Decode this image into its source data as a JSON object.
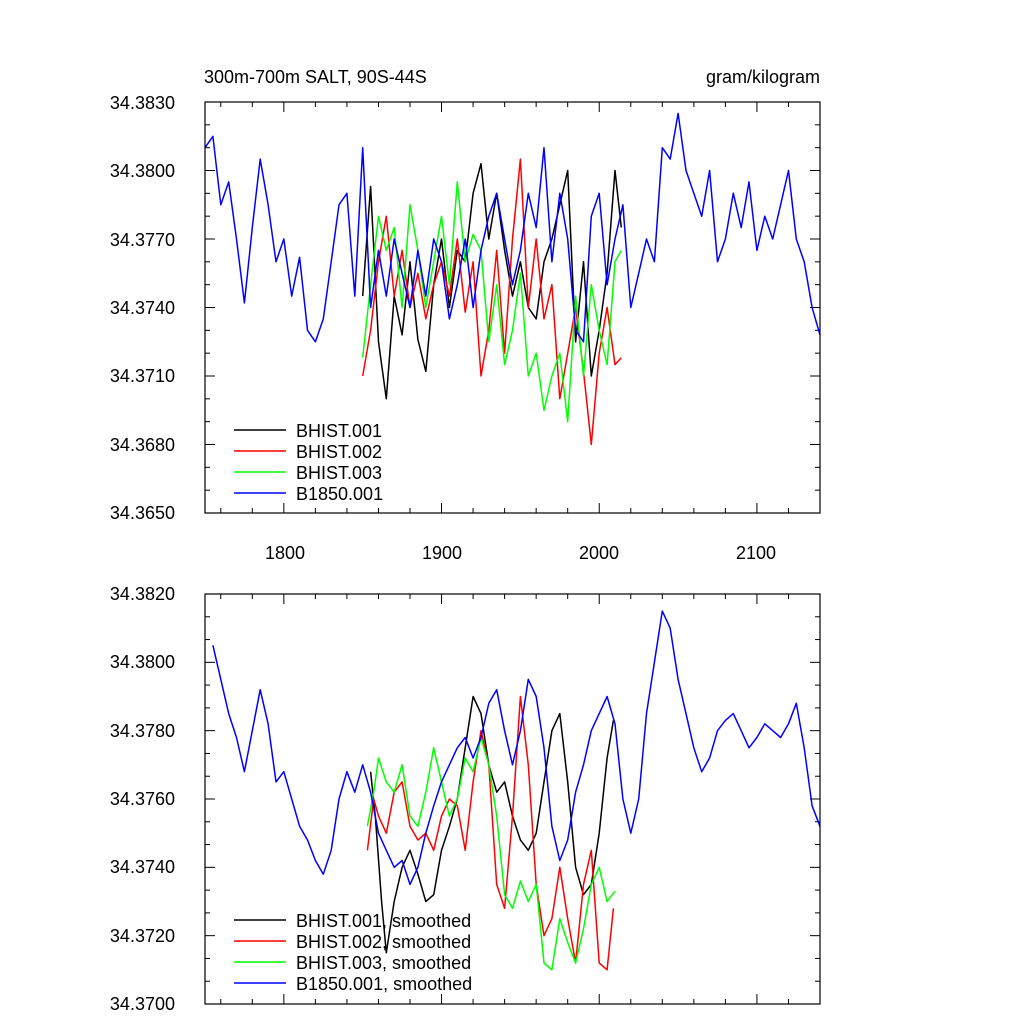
{
  "chart_data": [
    {
      "type": "line",
      "title_left": "300m-700m SALT, 90S-44S",
      "title_right": "gram/kilogram",
      "xlim": [
        1750,
        2140
      ],
      "ylim": [
        34.365,
        34.383
      ],
      "x_ticks": [
        1800,
        1900,
        2000,
        2100
      ],
      "x_tick_labels": [
        "1800",
        "1900",
        "2000",
        "2100"
      ],
      "y_ticks": [
        34.365,
        34.368,
        34.371,
        34.374,
        34.377,
        34.38,
        34.383
      ],
      "y_tick_labels": [
        "34.3650",
        "34.3680",
        "34.3710",
        "34.3740",
        "34.3770",
        "34.3800",
        "34.3830"
      ],
      "legend": {
        "placement": "bottom-left"
      },
      "series": [
        {
          "name": "BHIST.001",
          "color": "#000000",
          "x": [
            1850,
            1855,
            1860,
            1865,
            1870,
            1875,
            1880,
            1885,
            1890,
            1895,
            1900,
            1905,
            1910,
            1915,
            1920,
            1925,
            1930,
            1935,
            1940,
            1945,
            1950,
            1955,
            1960,
            1965,
            1970,
            1975,
            1980,
            1985,
            1990,
            1995,
            2000,
            2005,
            2010,
            2014
          ],
          "y": [
            34.3745,
            34.3793,
            34.3725,
            34.37,
            34.3745,
            34.3728,
            34.376,
            34.3726,
            34.3712,
            34.375,
            34.377,
            34.374,
            34.3765,
            34.376,
            34.379,
            34.3803,
            34.377,
            34.379,
            34.3765,
            34.3745,
            34.376,
            34.374,
            34.3735,
            34.376,
            34.377,
            34.3785,
            34.38,
            34.3725,
            34.376,
            34.371,
            34.373,
            34.3755,
            34.38,
            34.3775
          ]
        },
        {
          "name": "BHIST.002",
          "color": "#ff0000",
          "x": [
            1850,
            1855,
            1860,
            1865,
            1870,
            1875,
            1880,
            1885,
            1890,
            1895,
            1900,
            1905,
            1910,
            1915,
            1920,
            1925,
            1930,
            1935,
            1940,
            1945,
            1950,
            1955,
            1960,
            1965,
            1970,
            1975,
            1980,
            1985,
            1990,
            1995,
            2000,
            2005,
            2010,
            2014
          ],
          "y": [
            34.371,
            34.373,
            34.376,
            34.378,
            34.3745,
            34.3765,
            34.374,
            34.3755,
            34.3735,
            34.375,
            34.376,
            34.3745,
            34.377,
            34.3738,
            34.376,
            34.371,
            34.373,
            34.3765,
            34.372,
            34.377,
            34.3805,
            34.374,
            34.377,
            34.3735,
            34.375,
            34.37,
            34.372,
            34.374,
            34.3712,
            34.368,
            34.372,
            34.374,
            34.3715,
            34.3718
          ]
        },
        {
          "name": "BHIST.003",
          "color": "#00ff00",
          "x": [
            1850,
            1855,
            1860,
            1865,
            1870,
            1875,
            1880,
            1885,
            1890,
            1895,
            1900,
            1905,
            1910,
            1915,
            1920,
            1925,
            1930,
            1935,
            1940,
            1945,
            1950,
            1955,
            1960,
            1965,
            1970,
            1975,
            1980,
            1985,
            1990,
            1995,
            2000,
            2005,
            2010,
            2014
          ],
          "y": [
            34.3718,
            34.375,
            34.378,
            34.3765,
            34.3775,
            34.374,
            34.3785,
            34.3765,
            34.374,
            34.376,
            34.378,
            34.375,
            34.3795,
            34.376,
            34.3772,
            34.3765,
            34.3725,
            34.375,
            34.3715,
            34.373,
            34.3755,
            34.371,
            34.372,
            34.3695,
            34.371,
            34.372,
            34.369,
            34.3745,
            34.371,
            34.375,
            34.373,
            34.3715,
            34.376,
            34.3765
          ]
        },
        {
          "name": "B1850.001",
          "color": "#0000ff",
          "x": [
            1750,
            1755,
            1760,
            1765,
            1770,
            1775,
            1780,
            1785,
            1790,
            1795,
            1800,
            1805,
            1810,
            1815,
            1820,
            1825,
            1830,
            1835,
            1840,
            1845,
            1850,
            1855,
            1860,
            1865,
            1870,
            1875,
            1880,
            1885,
            1890,
            1895,
            1900,
            1905,
            1910,
            1915,
            1920,
            1925,
            1930,
            1935,
            1940,
            1945,
            1950,
            1955,
            1960,
            1965,
            1970,
            1975,
            1980,
            1985,
            1990,
            1995,
            2000,
            2005,
            2010,
            2015,
            2020,
            2025,
            2030,
            2035,
            2040,
            2045,
            2050,
            2055,
            2060,
            2065,
            2070,
            2075,
            2080,
            2085,
            2090,
            2095,
            2100,
            2105,
            2110,
            2115,
            2120,
            2125,
            2130,
            2135,
            2140
          ],
          "y": [
            34.381,
            34.3815,
            34.3785,
            34.3795,
            34.377,
            34.3742,
            34.3775,
            34.3805,
            34.3785,
            34.376,
            34.377,
            34.3745,
            34.3762,
            34.373,
            34.3725,
            34.3735,
            34.376,
            34.3785,
            34.379,
            34.3745,
            34.381,
            34.374,
            34.3765,
            34.3745,
            34.377,
            34.3755,
            34.374,
            34.3765,
            34.3745,
            34.377,
            34.376,
            34.3735,
            34.375,
            34.377,
            34.374,
            34.3765,
            34.378,
            34.379,
            34.377,
            34.375,
            34.3765,
            34.379,
            34.3775,
            34.381,
            34.376,
            34.379,
            34.377,
            34.373,
            34.3725,
            34.378,
            34.379,
            34.375,
            34.377,
            34.3785,
            34.374,
            34.3755,
            34.377,
            34.376,
            34.381,
            34.3805,
            34.3825,
            34.38,
            34.379,
            34.378,
            34.38,
            34.376,
            34.377,
            34.379,
            34.3775,
            34.3795,
            34.3765,
            34.378,
            34.377,
            34.3785,
            34.38,
            34.377,
            34.376,
            34.374,
            34.3728
          ]
        }
      ]
    },
    {
      "type": "line",
      "xlim": [
        1750,
        2140
      ],
      "ylim": [
        34.37,
        34.382
      ],
      "x_ticks": [
        1800,
        1900,
        2000,
        2100
      ],
      "y_ticks": [
        34.37,
        34.372,
        34.374,
        34.376,
        34.378,
        34.38,
        34.382
      ],
      "y_tick_labels": [
        "34.3700",
        "34.3720",
        "34.3740",
        "34.3760",
        "34.3780",
        "34.3800",
        "34.3820"
      ],
      "legend": {
        "placement": "bottom-left"
      },
      "series": [
        {
          "name": "BHIST.001, smoothed",
          "color": "#000000",
          "x": [
            1855,
            1858,
            1862,
            1865,
            1870,
            1875,
            1880,
            1885,
            1890,
            1895,
            1900,
            1905,
            1910,
            1915,
            1920,
            1925,
            1930,
            1935,
            1940,
            1945,
            1950,
            1955,
            1960,
            1965,
            1970,
            1975,
            1980,
            1985,
            1990,
            1995,
            2000,
            2005,
            2009
          ],
          "y": [
            34.3768,
            34.3755,
            34.373,
            34.3715,
            34.373,
            34.374,
            34.3745,
            34.3738,
            34.373,
            34.3732,
            34.3745,
            34.3752,
            34.376,
            34.3775,
            34.379,
            34.3785,
            34.377,
            34.3762,
            34.3765,
            34.3755,
            34.3748,
            34.3745,
            34.375,
            34.3765,
            34.378,
            34.3785,
            34.3765,
            34.374,
            34.3732,
            34.3735,
            34.375,
            34.3772,
            34.3783
          ]
        },
        {
          "name": "BHIST.002, smoothed",
          "color": "#ff0000",
          "x": [
            1853,
            1857,
            1860,
            1865,
            1870,
            1875,
            1880,
            1885,
            1890,
            1895,
            1900,
            1905,
            1910,
            1915,
            1920,
            1925,
            1930,
            1935,
            1940,
            1945,
            1950,
            1955,
            1960,
            1965,
            1970,
            1975,
            1980,
            1985,
            1990,
            1995,
            2000,
            2005,
            2009
          ],
          "y": [
            34.3745,
            34.376,
            34.3755,
            34.375,
            34.3762,
            34.3765,
            34.3752,
            34.3748,
            34.375,
            34.3745,
            34.3755,
            34.376,
            34.3758,
            34.3745,
            34.3765,
            34.378,
            34.377,
            34.3735,
            34.3728,
            34.3755,
            34.379,
            34.377,
            34.3735,
            34.372,
            34.3725,
            34.374,
            34.3725,
            34.3712,
            34.3735,
            34.3745,
            34.3712,
            34.371,
            34.3728
          ]
        },
        {
          "name": "BHIST.003, smoothed",
          "color": "#00ff00",
          "x": [
            1853,
            1857,
            1860,
            1865,
            1870,
            1875,
            1880,
            1885,
            1890,
            1895,
            1900,
            1905,
            1910,
            1915,
            1920,
            1925,
            1930,
            1935,
            1940,
            1945,
            1950,
            1955,
            1960,
            1965,
            1970,
            1975,
            1980,
            1985,
            1990,
            1995,
            2000,
            2005,
            2010
          ],
          "y": [
            34.3752,
            34.3762,
            34.3772,
            34.3765,
            34.3762,
            34.377,
            34.3755,
            34.3752,
            34.3762,
            34.3775,
            34.3765,
            34.3755,
            34.376,
            34.3772,
            34.3768,
            34.3778,
            34.377,
            34.3755,
            34.3732,
            34.3728,
            34.3736,
            34.373,
            34.3735,
            34.3712,
            34.371,
            34.3725,
            34.3718,
            34.3712,
            34.3722,
            34.3735,
            34.374,
            34.373,
            34.3733
          ]
        },
        {
          "name": "B1850.001, smoothed",
          "color": "#0000ff",
          "x": [
            1755,
            1760,
            1765,
            1770,
            1775,
            1780,
            1785,
            1790,
            1795,
            1800,
            1805,
            1810,
            1815,
            1820,
            1825,
            1830,
            1835,
            1840,
            1845,
            1850,
            1855,
            1860,
            1865,
            1870,
            1875,
            1880,
            1885,
            1890,
            1895,
            1900,
            1905,
            1910,
            1915,
            1920,
            1925,
            1930,
            1935,
            1940,
            1945,
            1950,
            1955,
            1960,
            1965,
            1970,
            1975,
            1980,
            1985,
            1990,
            1995,
            2000,
            2005,
            2010,
            2015,
            2020,
            2025,
            2030,
            2035,
            2040,
            2045,
            2050,
            2055,
            2060,
            2065,
            2070,
            2075,
            2080,
            2085,
            2090,
            2095,
            2100,
            2105,
            2110,
            2115,
            2120,
            2125,
            2130,
            2135,
            2140
          ],
          "y": [
            34.3805,
            34.3795,
            34.3785,
            34.3778,
            34.3768,
            34.378,
            34.3792,
            34.3782,
            34.3765,
            34.3768,
            34.376,
            34.3752,
            34.3748,
            34.3742,
            34.3738,
            34.3745,
            34.376,
            34.3768,
            34.3762,
            34.377,
            34.3762,
            34.375,
            34.3745,
            34.374,
            34.3742,
            34.3735,
            34.374,
            34.375,
            34.3758,
            34.3765,
            34.377,
            34.3775,
            34.3778,
            34.3772,
            34.3778,
            34.3788,
            34.3792,
            34.378,
            34.377,
            34.378,
            34.3795,
            34.379,
            34.3775,
            34.3752,
            34.3742,
            34.3748,
            34.3762,
            34.377,
            34.378,
            34.3785,
            34.379,
            34.3782,
            34.376,
            34.375,
            34.376,
            34.3785,
            34.38,
            34.3815,
            34.381,
            34.3795,
            34.3785,
            34.3775,
            34.3768,
            34.3772,
            34.378,
            34.3783,
            34.3785,
            34.378,
            34.3775,
            34.3778,
            34.3782,
            34.378,
            34.3778,
            34.3782,
            34.3788,
            34.3775,
            34.3758,
            34.3752
          ]
        }
      ]
    }
  ]
}
